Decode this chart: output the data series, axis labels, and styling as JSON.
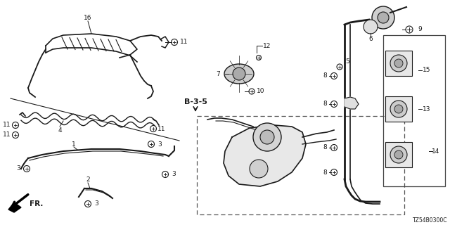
{
  "background_color": "#ffffff",
  "line_color": "#1a1a1a",
  "part_number_code": "TZ54B0300C",
  "section_label": "B-3-5",
  "figsize": [
    6.4,
    3.2
  ],
  "dpi": 100
}
